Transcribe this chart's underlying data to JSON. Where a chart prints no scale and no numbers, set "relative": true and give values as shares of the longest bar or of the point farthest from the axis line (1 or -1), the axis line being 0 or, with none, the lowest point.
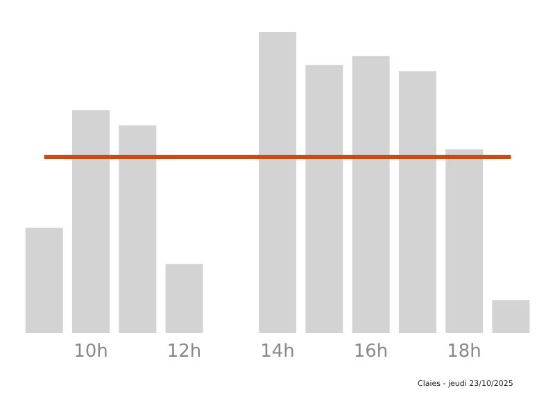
{
  "chart_data": {
    "type": "bar",
    "relative": true,
    "categories": [
      null,
      "10h",
      null,
      "12h",
      null,
      "14h",
      null,
      "16h",
      null,
      "18h",
      null
    ],
    "values": [
      0.35,
      0.74,
      0.69,
      0.23,
      0,
      1,
      0.89,
      0.92,
      0.87,
      0.61,
      0.11
    ],
    "color": "#d3d3d3",
    "ref_lines": [
      {
        "axis": "y",
        "value": 0.585,
        "color": "#cc4a10"
      }
    ],
    "annotations": [
      "Claies - jeudi 23/10/2025"
    ],
    "grid": false
  }
}
